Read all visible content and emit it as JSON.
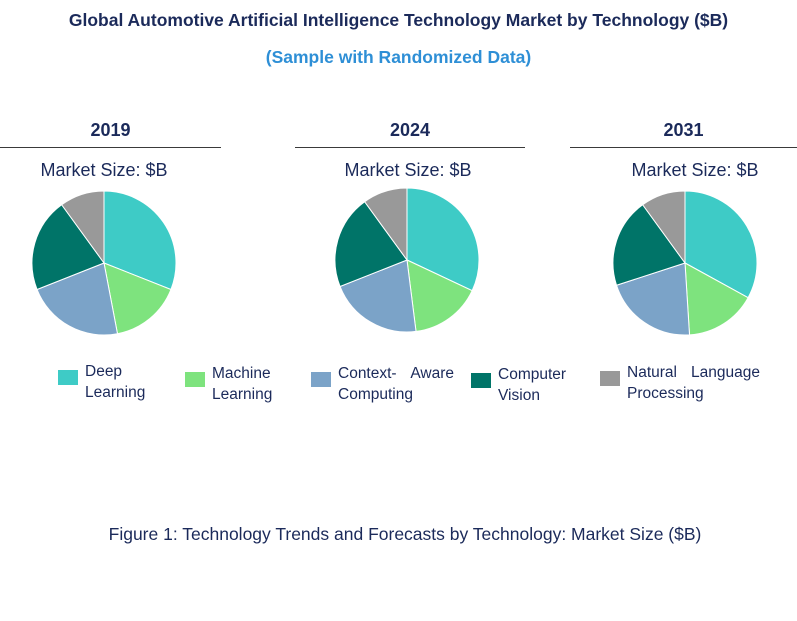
{
  "title": "Global Automotive Artificial Intelligence Technology Market by Technology ($B)",
  "subtitle": "(Sample with Randomized Data)",
  "caption": "Figure 1: Technology Trends and Forecasts by Technology: Market Size ($B)",
  "colors": {
    "deep_learning": "#3ecbc6",
    "machine_learning": "#7ee37e",
    "context_aware": "#7ba3c8",
    "computer_vision": "#007468",
    "nlp": "#999999",
    "title": "#1b2a5a",
    "subtitle": "#2e8fd6"
  },
  "legend": [
    {
      "line1": [
        "Deep"
      ],
      "line2": "Learning"
    },
    {
      "line1": [
        "Machine"
      ],
      "line2": "Learning"
    },
    {
      "line1": [
        "Context-",
        "Aware"
      ],
      "line2": "Computing"
    },
    {
      "line1": [
        "Computer"
      ],
      "line2": "Vision"
    },
    {
      "line1": [
        "Natural",
        "Language"
      ],
      "line2": "Processing"
    }
  ],
  "chart_data": [
    {
      "type": "pie",
      "title": "2019",
      "subtitle": "Market Size: $B",
      "categories": [
        "Deep Learning",
        "Machine Learning",
        "Context- Aware Computing",
        "Computer Vision",
        "Natural Language Processing"
      ],
      "values": [
        31,
        16,
        22,
        21,
        10
      ]
    },
    {
      "type": "pie",
      "title": "2024",
      "subtitle": "Market Size: $B",
      "categories": [
        "Deep Learning",
        "Machine Learning",
        "Context- Aware Computing",
        "Computer Vision",
        "Natural Language Processing"
      ],
      "values": [
        32,
        16,
        21,
        21,
        10
      ]
    },
    {
      "type": "pie",
      "title": "2031",
      "subtitle": "Market Size: $B",
      "categories": [
        "Deep Learning",
        "Machine Learning",
        "Context- Aware Computing",
        "Computer Vision",
        "Natural Language Processing"
      ],
      "values": [
        33,
        16,
        21,
        20,
        10
      ]
    }
  ]
}
